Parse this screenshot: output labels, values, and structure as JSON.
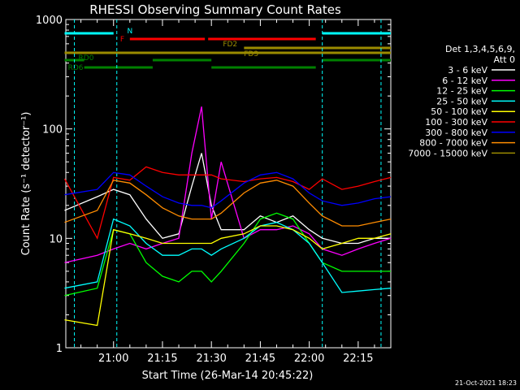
{
  "chart_data": {
    "type": "line",
    "title": "RHESSI Observing Summary Count Rates",
    "xlabel": "Start Time (26-Mar-14 20:45:22)",
    "ylabel": "Count Rate (s⁻¹ detector⁻¹)",
    "ylim": [
      1,
      1000
    ],
    "yscale": "log",
    "y_ticks": [
      {
        "value": 1,
        "label": "1"
      },
      {
        "value": 10,
        "label": "10"
      },
      {
        "value": 100,
        "label": "100"
      },
      {
        "value": 1000,
        "label": "1000"
      }
    ],
    "x_range": [
      "20:45:22",
      "22:25:00"
    ],
    "x_ticks": [
      "21:00",
      "21:15",
      "21:30",
      "21:45",
      "22:00",
      "22:15"
    ],
    "legend": {
      "placement": "right",
      "header": [
        "Det 1,3,4,5,6,9,",
        "Att 0"
      ]
    },
    "series": [
      {
        "name": "3 - 6 keV",
        "color": "#ffffff",
        "x": [
          "20:45",
          "20:55",
          "21:00",
          "21:05",
          "21:10",
          "21:15",
          "21:20",
          "21:24",
          "21:27",
          "21:30",
          "21:33",
          "21:40",
          "21:45",
          "21:50",
          "21:55",
          "22:00",
          "22:04",
          "22:10",
          "22:15",
          "22:20",
          "22:25"
        ],
        "values": [
          18,
          24,
          28,
          25,
          15,
          10,
          11,
          30,
          60,
          20,
          12,
          12,
          16,
          14,
          16,
          12,
          10,
          9,
          9,
          10,
          10
        ]
      },
      {
        "name": "6 - 12 keV",
        "color": "#ff00ff",
        "x": [
          "20:45",
          "20:55",
          "21:00",
          "21:05",
          "21:10",
          "21:15",
          "21:20",
          "21:24",
          "21:27",
          "21:30",
          "21:33",
          "21:40",
          "21:45",
          "21:50",
          "21:55",
          "22:00",
          "22:04",
          "22:10",
          "22:15",
          "22:20",
          "22:25"
        ],
        "values": [
          6,
          7,
          8,
          9,
          8,
          9,
          10,
          60,
          160,
          15,
          50,
          10,
          12,
          12,
          13,
          11,
          8,
          7,
          8,
          9,
          10
        ]
      },
      {
        "name": "12 - 25 keV",
        "color": "#00ff00",
        "x": [
          "20:45",
          "20:55",
          "21:00",
          "21:05",
          "21:10",
          "21:15",
          "21:20",
          "21:24",
          "21:27",
          "21:30",
          "21:33",
          "21:40",
          "21:45",
          "21:50",
          "21:55",
          "22:00",
          "22:04",
          "22:10",
          "22:15",
          "22:20",
          "22:25"
        ],
        "values": [
          3,
          3.5,
          12,
          11,
          6,
          4.5,
          4,
          5,
          5,
          4,
          5,
          9,
          15,
          17,
          15,
          9,
          6,
          5,
          5,
          5,
          5
        ]
      },
      {
        "name": "25 - 50 keV",
        "color": "#00ffff",
        "x": [
          "20:45",
          "20:55",
          "21:00",
          "21:05",
          "21:10",
          "21:15",
          "21:20",
          "21:24",
          "21:27",
          "21:30",
          "21:33",
          "21:40",
          "21:45",
          "21:50",
          "21:55",
          "22:00",
          "22:04",
          "22:10",
          "22:15",
          "22:20",
          "22:25"
        ],
        "values": [
          3.5,
          4,
          15,
          13,
          9,
          7,
          7,
          8,
          8,
          7,
          8,
          10,
          13,
          14,
          12,
          9,
          6,
          3.2,
          3.3,
          3.4,
          3.5
        ]
      },
      {
        "name": "50 - 100 keV",
        "color": "#ffff00",
        "x": [
          "20:45",
          "20:55",
          "21:00",
          "21:05",
          "21:10",
          "21:15",
          "21:20",
          "21:24",
          "21:27",
          "21:30",
          "21:33",
          "21:40",
          "21:45",
          "21:50",
          "21:55",
          "22:00",
          "22:04",
          "22:10",
          "22:15",
          "22:20",
          "22:25"
        ],
        "values": [
          1.8,
          1.6,
          12,
          11,
          10,
          9,
          9,
          9,
          9,
          9,
          10,
          11,
          13,
          13,
          12,
          10,
          8,
          9,
          10,
          10,
          11
        ]
      },
      {
        "name": "100 - 300 keV",
        "color": "#ff0000",
        "x": [
          "20:45",
          "20:55",
          "21:00",
          "21:05",
          "21:10",
          "21:15",
          "21:20",
          "21:24",
          "21:27",
          "21:30",
          "21:33",
          "21:40",
          "21:45",
          "21:50",
          "21:55",
          "22:00",
          "22:04",
          "22:10",
          "22:15",
          "22:20",
          "22:25"
        ],
        "values": [
          35,
          10,
          36,
          34,
          45,
          40,
          38,
          38,
          38,
          38,
          35,
          33,
          35,
          36,
          33,
          28,
          35,
          28,
          30,
          33,
          36
        ]
      },
      {
        "name": "300 - 800 keV",
        "color": "#0000ff",
        "x": [
          "20:45",
          "20:55",
          "21:00",
          "21:05",
          "21:10",
          "21:15",
          "21:20",
          "21:24",
          "21:27",
          "21:30",
          "21:33",
          "21:40",
          "21:45",
          "21:50",
          "21:55",
          "22:00",
          "22:04",
          "22:10",
          "22:15",
          "22:20",
          "22:25"
        ],
        "values": [
          25,
          28,
          40,
          38,
          30,
          24,
          21,
          20,
          20,
          19,
          22,
          32,
          38,
          40,
          35,
          26,
          22,
          20,
          21,
          23,
          24
        ]
      },
      {
        "name": "800 - 7000 keV",
        "color": "#ff8c00",
        "x": [
          "20:45",
          "20:55",
          "21:00",
          "21:05",
          "21:10",
          "21:15",
          "21:20",
          "21:24",
          "21:27",
          "21:30",
          "21:33",
          "21:40",
          "21:45",
          "21:50",
          "21:55",
          "22:00",
          "22:04",
          "22:10",
          "22:15",
          "22:20",
          "22:25"
        ],
        "values": [
          14,
          18,
          34,
          32,
          25,
          19,
          16,
          15,
          15,
          15,
          17,
          26,
          32,
          34,
          30,
          21,
          16,
          13,
          13,
          14,
          15
        ]
      },
      {
        "name": "7000 - 15000 keV",
        "color": "#9b8b00",
        "x": [],
        "values": []
      }
    ],
    "bars": [
      {
        "label": "N",
        "color": "#00ffff",
        "segments": [
          [
            "20:45",
            "21:00"
          ],
          [
            "22:04",
            "22:25"
          ]
        ]
      },
      {
        "label": "F",
        "color": "#ff0000",
        "segments": [
          [
            "21:05",
            "21:28"
          ],
          [
            "21:29",
            "22:02"
          ]
        ]
      },
      {
        "label": "FD2",
        "color": "#9b8b00",
        "segments": [
          [
            "21:40",
            "22:25"
          ]
        ]
      },
      {
        "label": "FD3",
        "color": "#9b8b00",
        "segments": [
          [
            "20:45",
            "22:25"
          ]
        ]
      },
      {
        "label": "RD0",
        "color": "#008000",
        "segments": [
          [
            "20:45",
            "20:51"
          ],
          [
            "21:12",
            "21:30"
          ],
          [
            "22:04",
            "22:25"
          ]
        ]
      },
      {
        "label": "RD6",
        "color": "#008000",
        "segments": [
          [
            "20:51",
            "21:12"
          ],
          [
            "21:30",
            "22:02"
          ]
        ]
      }
    ],
    "vertical_markers": [
      "20:48",
      "21:01",
      "22:04",
      "22:22"
    ],
    "footer_date": "21-Oct-2021 18:23"
  }
}
